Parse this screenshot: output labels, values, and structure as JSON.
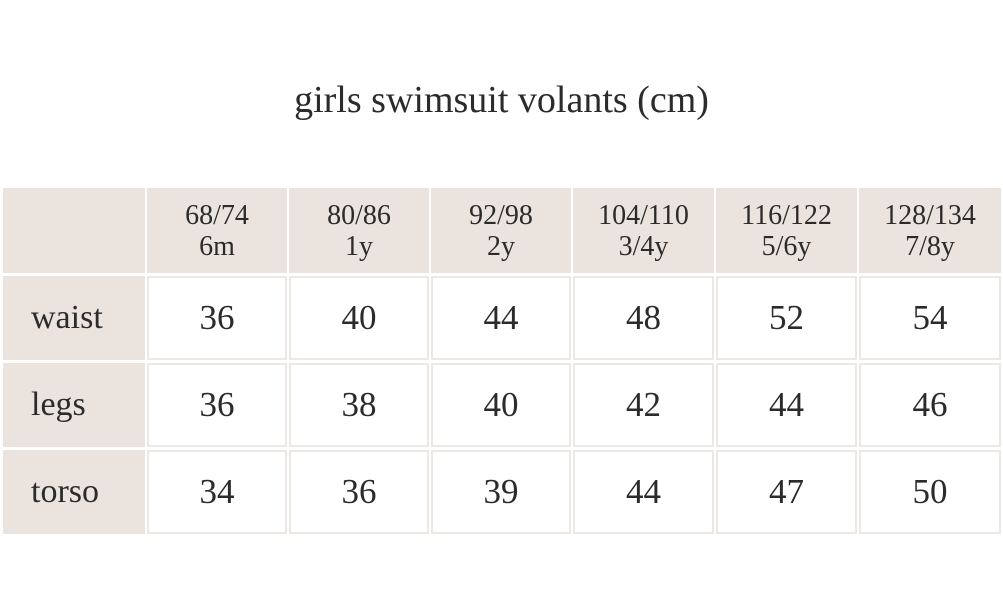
{
  "title": "girls swimsuit volants (cm)",
  "table": {
    "header": [
      [
        "68/74",
        "6m"
      ],
      [
        "80/86",
        "1y"
      ],
      [
        "92/98",
        "2y"
      ],
      [
        "104/110",
        "3/4y"
      ],
      [
        "116/122",
        "5/6y"
      ],
      [
        "128/134",
        "7/8y"
      ]
    ],
    "rows": [
      {
        "label": "waist",
        "values": [
          36,
          40,
          44,
          48,
          52,
          54
        ]
      },
      {
        "label": "legs",
        "values": [
          36,
          38,
          40,
          42,
          44,
          46
        ]
      },
      {
        "label": "torso",
        "values": [
          34,
          36,
          39,
          44,
          47,
          50
        ]
      }
    ]
  }
}
